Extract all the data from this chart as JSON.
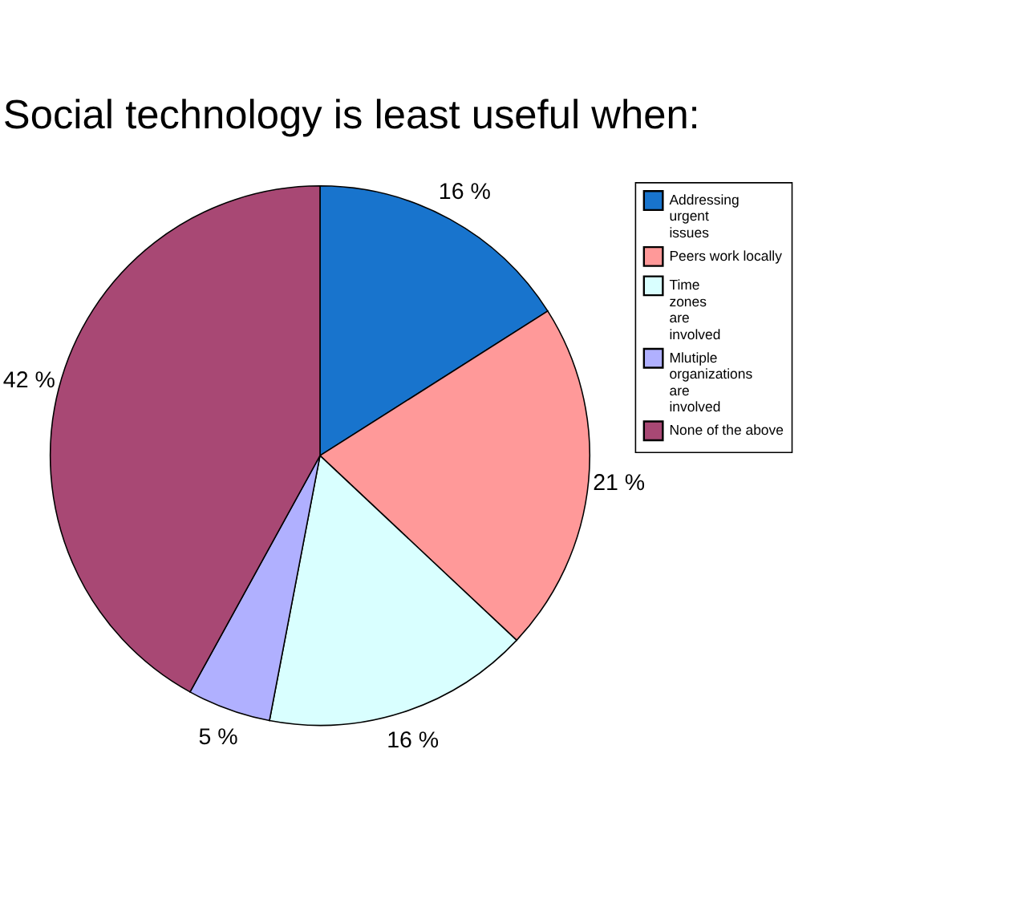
{
  "chart_data": {
    "type": "pie",
    "title": "Social technology is least useful when:",
    "categories": [
      "Addressing urgent issues",
      "Peers work locally",
      "Time zones are involved",
      "Mlutiple organizations are involved",
      "None of the above"
    ],
    "values": [
      16,
      21,
      16,
      5,
      42
    ],
    "colors": [
      "#1874cd",
      "#ff9999",
      "#d9ffff",
      "#b0b0ff",
      "#a84874"
    ],
    "value_labels": [
      "16 %",
      "21 %",
      "16 %",
      "5 %",
      "42 %"
    ],
    "legend": "right"
  }
}
